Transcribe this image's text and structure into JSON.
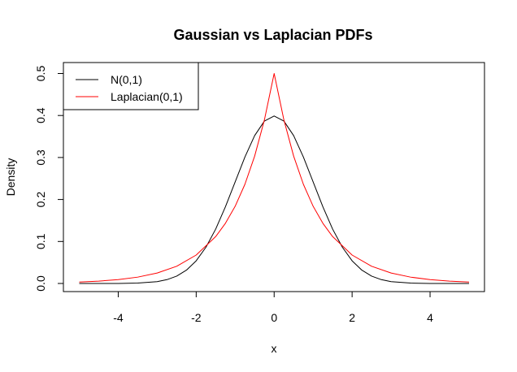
{
  "chart_data": {
    "type": "line",
    "title": "Gaussian vs Laplacian PDFs",
    "xlabel": "x",
    "ylabel": "Density",
    "xlim": [
      -5,
      5
    ],
    "ylim": [
      0,
      0.5
    ],
    "x_ticks": [
      -4,
      -2,
      0,
      2,
      4
    ],
    "x_tick_labels": [
      "-4",
      "-2",
      "0",
      "2",
      "4"
    ],
    "y_ticks": [
      0,
      0.1,
      0.2,
      0.3,
      0.4,
      0.5
    ],
    "y_tick_labels": [
      "0.0",
      "0.1",
      "0.2",
      "0.3",
      "0.4",
      "0.5"
    ],
    "grid": false,
    "legend_position": "top-left",
    "series": [
      {
        "name": "N(0,1)",
        "color": "#000000",
        "x": [
          -5,
          -4.5,
          -4,
          -3.5,
          -3,
          -2.75,
          -2.5,
          -2.25,
          -2,
          -1.75,
          -1.5,
          -1.25,
          -1,
          -0.75,
          -0.5,
          -0.25,
          0,
          0.25,
          0.5,
          0.75,
          1,
          1.25,
          1.5,
          1.75,
          2,
          2.25,
          2.5,
          2.75,
          3,
          3.5,
          4,
          4.5,
          5
        ],
        "y": [
          0.0,
          0.0,
          0.0001,
          0.0009,
          0.0044,
          0.0091,
          0.0175,
          0.0317,
          0.054,
          0.0863,
          0.1295,
          0.1826,
          0.242,
          0.3011,
          0.3521,
          0.3867,
          0.3989,
          0.3867,
          0.3521,
          0.3011,
          0.242,
          0.1826,
          0.1295,
          0.0863,
          0.054,
          0.0317,
          0.0175,
          0.0091,
          0.0044,
          0.0009,
          0.0001,
          0.0,
          0.0
        ]
      },
      {
        "name": "Laplacian(0,1)",
        "color": "#ff0000",
        "x": [
          -5,
          -4.5,
          -4,
          -3.5,
          -3,
          -2.5,
          -2,
          -1.5,
          -1.25,
          -1,
          -0.75,
          -0.5,
          -0.25,
          0,
          0.25,
          0.5,
          0.75,
          1,
          1.25,
          1.5,
          2,
          2.5,
          3,
          3.5,
          4,
          4.5,
          5
        ],
        "y": [
          0.0034,
          0.0056,
          0.0092,
          0.0151,
          0.0249,
          0.041,
          0.0677,
          0.1116,
          0.1433,
          0.1839,
          0.2362,
          0.3033,
          0.3894,
          0.5,
          0.3894,
          0.3033,
          0.2362,
          0.1839,
          0.1433,
          0.1116,
          0.0677,
          0.041,
          0.0249,
          0.0151,
          0.0092,
          0.0056,
          0.0034
        ]
      }
    ]
  }
}
